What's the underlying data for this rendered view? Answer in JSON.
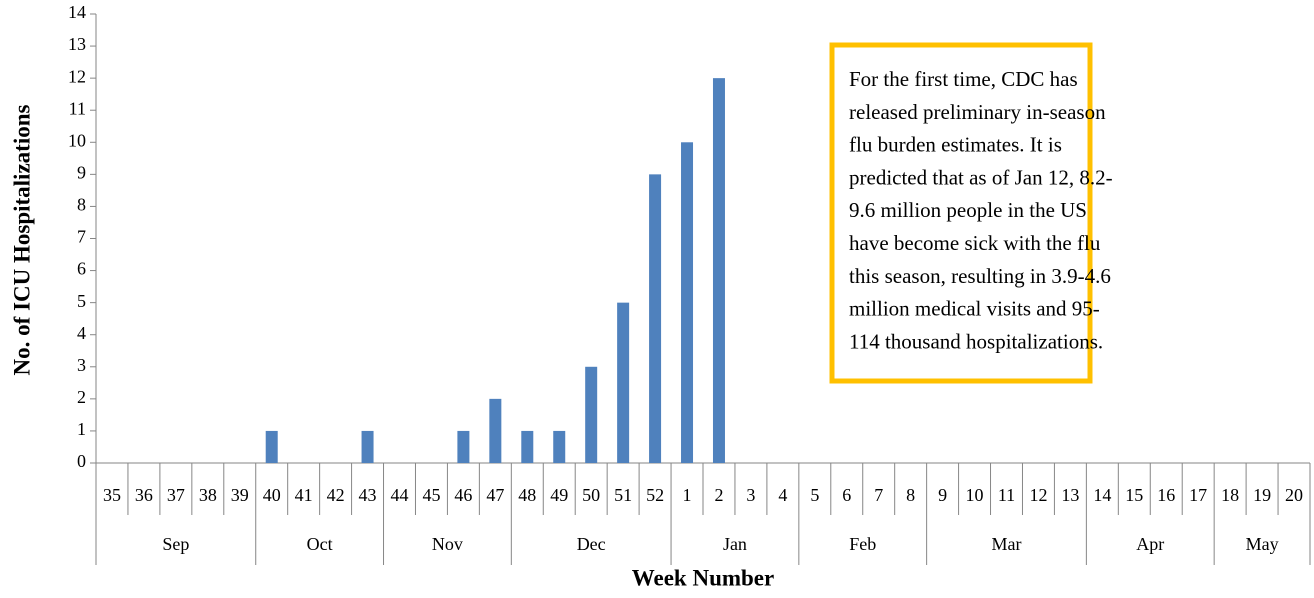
{
  "chart_data": {
    "type": "bar",
    "x_label": "Week Number",
    "y_label": "No. of ICU Hospitalizations",
    "categories": [
      "35",
      "36",
      "37",
      "38",
      "39",
      "40",
      "41",
      "42",
      "43",
      "44",
      "45",
      "46",
      "47",
      "48",
      "49",
      "50",
      "51",
      "52",
      "1",
      "2",
      "3",
      "4",
      "5",
      "6",
      "7",
      "8",
      "9",
      "10",
      "11",
      "12",
      "13",
      "14",
      "15",
      "16",
      "17",
      "18",
      "19",
      "20"
    ],
    "category_groups": [
      {
        "label": "Sep",
        "count": 5
      },
      {
        "label": "Oct",
        "count": 4
      },
      {
        "label": "Nov",
        "count": 4
      },
      {
        "label": "Dec",
        "count": 5
      },
      {
        "label": "Jan",
        "count": 4
      },
      {
        "label": "Feb",
        "count": 4
      },
      {
        "label": "Mar",
        "count": 5
      },
      {
        "label": "Apr",
        "count": 4
      },
      {
        "label": "May",
        "count": 3
      }
    ],
    "values": [
      0,
      0,
      0,
      0,
      0,
      1,
      0,
      0,
      1,
      0,
      0,
      1,
      2,
      1,
      1,
      3,
      5,
      9,
      10,
      12,
      null,
      null,
      null,
      null,
      null,
      null,
      null,
      null,
      null,
      null,
      null,
      null,
      null,
      null,
      null,
      null,
      null,
      null
    ],
    "color": "#4f81bd",
    "ylim": [
      0,
      14
    ],
    "yticks": [
      0,
      1,
      2,
      3,
      4,
      5,
      6,
      7,
      8,
      9,
      10,
      11,
      12,
      13,
      14
    ],
    "annotation_lines": [
      "For the first time, CDC has",
      "released preliminary in-season",
      "flu burden estimates. It is",
      "predicted that as of Jan 12, 8.2-",
      "9.6 million people in the US",
      "have become sick with the flu",
      "this season, resulting in 3.9-4.6",
      "million medical visits and 95-",
      "114 thousand hospitalizations."
    ],
    "annotation_border_color": "#ffc000"
  }
}
